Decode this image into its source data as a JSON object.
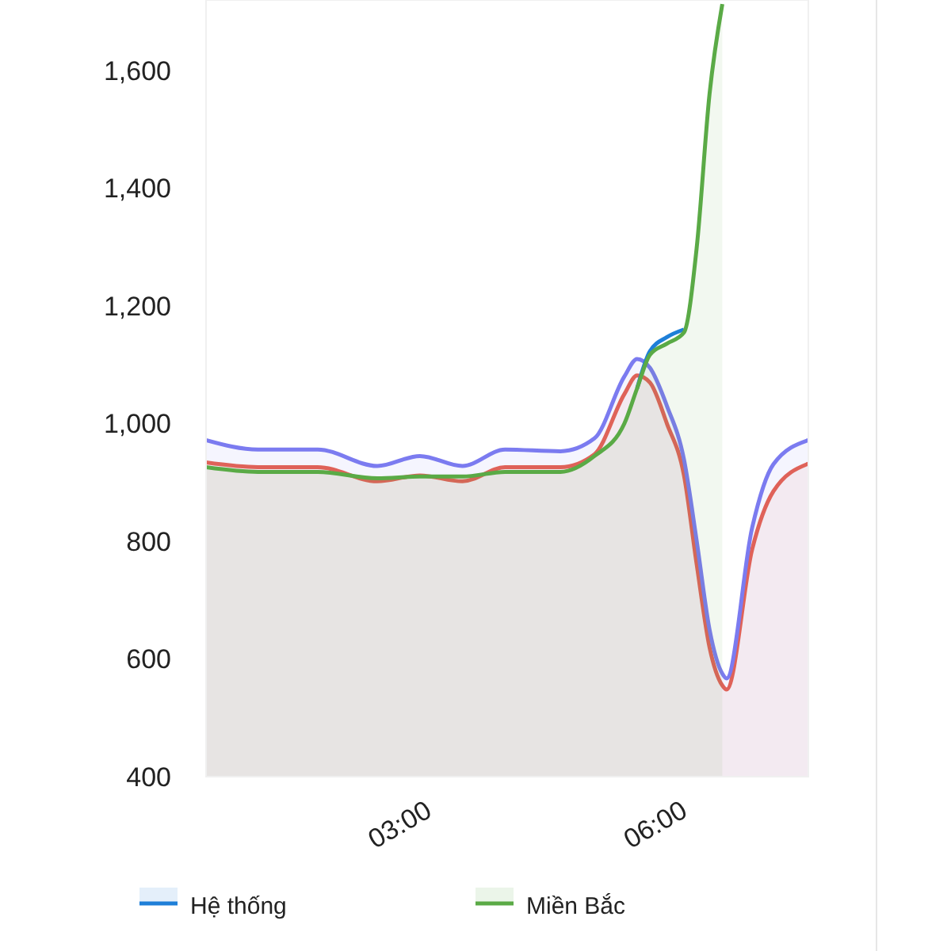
{
  "chart_data": {
    "type": "area",
    "x": [
      0.73,
      1.34,
      2.04,
      2.74,
      3.24,
      3.74,
      4.24,
      4.89,
      5.29,
      5.64,
      5.79,
      5.94,
      6.14,
      6.34,
      6.49,
      6.64,
      6.79,
      6.84,
      7.14,
      7.39,
      7.8
    ],
    "xlim": [
      0.73,
      7.8
    ],
    "xticks": [
      {
        "value": 3,
        "label": "03:00"
      },
      {
        "value": 6,
        "label": "06:00"
      }
    ],
    "ylim": [
      400,
      1720
    ],
    "yticks": [
      {
        "value": 400,
        "label": "400"
      },
      {
        "value": 600,
        "label": "600"
      },
      {
        "value": 800,
        "label": "800"
      },
      {
        "value": 1000,
        "label": "1,000"
      },
      {
        "value": 1200,
        "label": "1,200"
      },
      {
        "value": 1400,
        "label": "1,400"
      },
      {
        "value": 1600,
        "label": "1,600"
      }
    ],
    "grid": false,
    "legend": "bottom",
    "series": [
      {
        "color": "#e8604c",
        "values": [
          934,
          926,
          926,
          902,
          912,
          902,
          926,
          926,
          948,
          1050,
          1082,
          1070,
          1000,
          912,
          760,
          620,
          555,
          548,
          786,
          885,
          932
        ]
      },
      {
        "color": "#7b7bf0",
        "values": [
          972,
          956,
          956,
          928,
          945,
          928,
          956,
          953,
          975,
          1080,
          1110,
          1095,
          1030,
          939,
          800,
          650,
          575,
          567,
          823,
          931,
          972
        ]
      },
      {
        "name": "Hệ thống",
        "type": "line",
        "color": "#1e7fd8",
        "values": [
          null,
          null,
          null,
          null,
          null,
          null,
          null,
          null,
          null,
          null,
          1060,
          1123,
          1147,
          1160,
          null,
          null,
          null,
          null,
          null,
          null,
          null
        ]
      },
      {
        "name": "Miền Bắc",
        "color": "#5aaa46",
        "values": [
          926,
          918,
          918,
          907,
          910,
          910,
          918,
          918,
          945,
          1000,
          1060,
          1117,
          1136,
          1155,
          1300,
          1560,
          1713,
          null,
          null,
          null,
          null
        ]
      }
    ]
  }
}
